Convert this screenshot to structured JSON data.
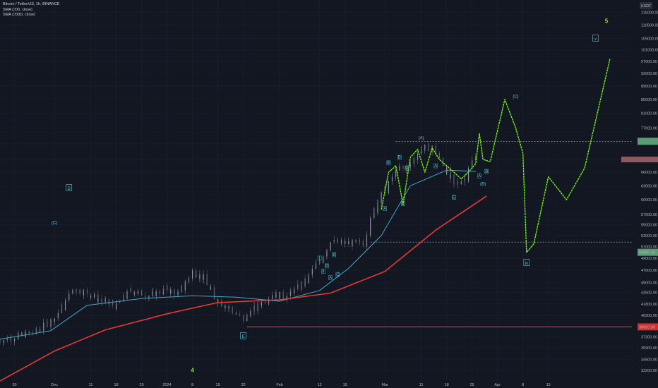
{
  "header": {
    "symbol": "Bitcoin / TetherUS, 1h, BINANCE",
    "indicator1": "SMA (200, close)",
    "indicator2": "SMA (200D, close)"
  },
  "price_axis": {
    "currency_label": "USDT",
    "ticks": [
      "115000.00",
      "110000.00",
      "105000.00",
      "101000.00",
      "97000.00",
      "93000.00",
      "89000.00",
      "85000.00",
      "81000.00",
      "77000.00",
      "73000.00",
      "69000.00",
      "66000.00",
      "63000.00",
      "60000.00",
      "57000.00",
      "55000.00",
      "53000.00",
      "51000.00",
      "49000.00",
      "47000.00",
      "45000.00",
      "43500.00",
      "41800.00",
      "40200.00",
      "38600.00",
      "37300.00",
      "35900.00",
      "34500.00",
      "33200.00",
      "32000.00"
    ],
    "price_tags": [
      {
        "value": "50000.00",
        "color": "#5d9b74"
      },
      {
        "value": "38600.00",
        "color": "#d32f2f"
      }
    ]
  },
  "time_axis": {
    "ticks": [
      "20",
      "Dec",
      "11",
      "18",
      "25",
      "2024",
      "8",
      "15",
      "22",
      "Feb",
      "12",
      "19",
      "Mar",
      "11",
      "18",
      "25",
      "Apr",
      "8",
      "15"
    ]
  },
  "chart_data": {
    "type": "line",
    "title": "Bitcoin / TetherUS, 1h, BINANCE",
    "x_unit": "date",
    "y_scale": "log",
    "ylim": [
      32000,
      120000
    ],
    "xlim": [
      "2023-11-16",
      "2024-05-08"
    ],
    "series": [
      {
        "name": "Bitcoin / TetherUS",
        "color": "#8a8f99",
        "x": [
          "2023-11-16",
          "2023-11-21",
          "2023-11-26",
          "2023-12-01",
          "2023-12-04",
          "2023-12-06",
          "2023-12-10",
          "2023-12-14",
          "2023-12-18",
          "2023-12-22",
          "2023-12-27",
          "2024-01-01",
          "2024-01-04",
          "2024-01-08",
          "2024-01-11",
          "2024-01-14",
          "2024-01-18",
          "2024-01-22",
          "2024-01-26",
          "2024-01-30",
          "2024-02-03",
          "2024-02-08",
          "2024-02-12",
          "2024-02-15",
          "2024-02-20",
          "2024-02-24",
          "2024-02-28",
          "2024-03-01",
          "2024-03-05",
          "2024-03-07",
          "2024-03-11",
          "2024-03-14",
          "2024-03-17",
          "2024-03-20",
          "2024-03-23",
          "2024-03-26"
        ],
        "y": [
          36800,
          37400,
          38000,
          39800,
          42000,
          44000,
          43500,
          42200,
          41500,
          43800,
          43000,
          44000,
          43200,
          46800,
          45800,
          42800,
          41200,
          39600,
          41600,
          43200,
          42900,
          45200,
          48600,
          51800,
          51600,
          51500,
          60000,
          62100,
          67000,
          66800,
          71800,
          71900,
          68000,
          63000,
          64800,
          70500
        ]
      },
      {
        "name": "SMA (200, close)",
        "color": "#4aa3c4",
        "x": [
          "2023-11-16",
          "2023-11-30",
          "2023-12-10",
          "2023-12-25",
          "2024-01-08",
          "2024-01-20",
          "2024-02-01",
          "2024-02-12",
          "2024-02-20",
          "2024-02-29",
          "2024-03-08",
          "2024-03-18",
          "2024-03-26"
        ],
        "y": [
          37000,
          38100,
          41600,
          42600,
          43000,
          42800,
          42200,
          43800,
          47300,
          53000,
          63000,
          66500,
          66200
        ]
      },
      {
        "name": "SMA (200D, close)",
        "color": "#e53935",
        "x": [
          "2023-11-16",
          "2023-12-01",
          "2023-12-15",
          "2024-01-01",
          "2024-01-15",
          "2024-02-01",
          "2024-02-15",
          "2024-03-01",
          "2024-03-15",
          "2024-03-29"
        ],
        "y": [
          32000,
          35500,
          38200,
          40400,
          42000,
          42400,
          43400,
          46800,
          54000,
          60800
        ]
      },
      {
        "name": "",
        "color": "#76ff03",
        "dashed": true,
        "x": [
          "2024-02-29",
          "2024-03-02",
          "2024-03-04",
          "2024-03-06",
          "2024-03-08",
          "2024-03-10",
          "2024-03-12",
          "2024-03-14",
          "2024-03-16",
          "2024-03-18",
          "2024-03-20",
          "2024-03-22",
          "2024-03-24",
          "2024-03-26",
          "2024-03-27",
          "2024-03-28",
          "2024-03-30",
          "2024-04-03",
          "2024-04-06",
          "2024-04-08",
          "2024-04-09",
          "2024-04-11",
          "2024-04-15",
          "2024-04-20",
          "2024-04-25",
          "2024-05-02"
        ],
        "y": [
          58000,
          66000,
          67500,
          59000,
          69500,
          71500,
          66000,
          71800,
          69000,
          67500,
          66000,
          64500,
          66000,
          68000,
          75500,
          69000,
          68500,
          85000,
          77000,
          70500,
          50000,
          51500,
          65000,
          60000,
          67000,
          98000
        ]
      }
    ],
    "wave_labels": [
      "(A)",
      "(B)",
      "(C)",
      "(C)",
      "D",
      "E",
      "5",
      "4",
      "V",
      "IV",
      "I",
      "II",
      "III",
      "A",
      "B",
      "C",
      "D",
      "E",
      "A",
      "B",
      "C",
      "v",
      "iv"
    ],
    "horizontal_levels": [
      73500,
      51800,
      38600
    ]
  }
}
